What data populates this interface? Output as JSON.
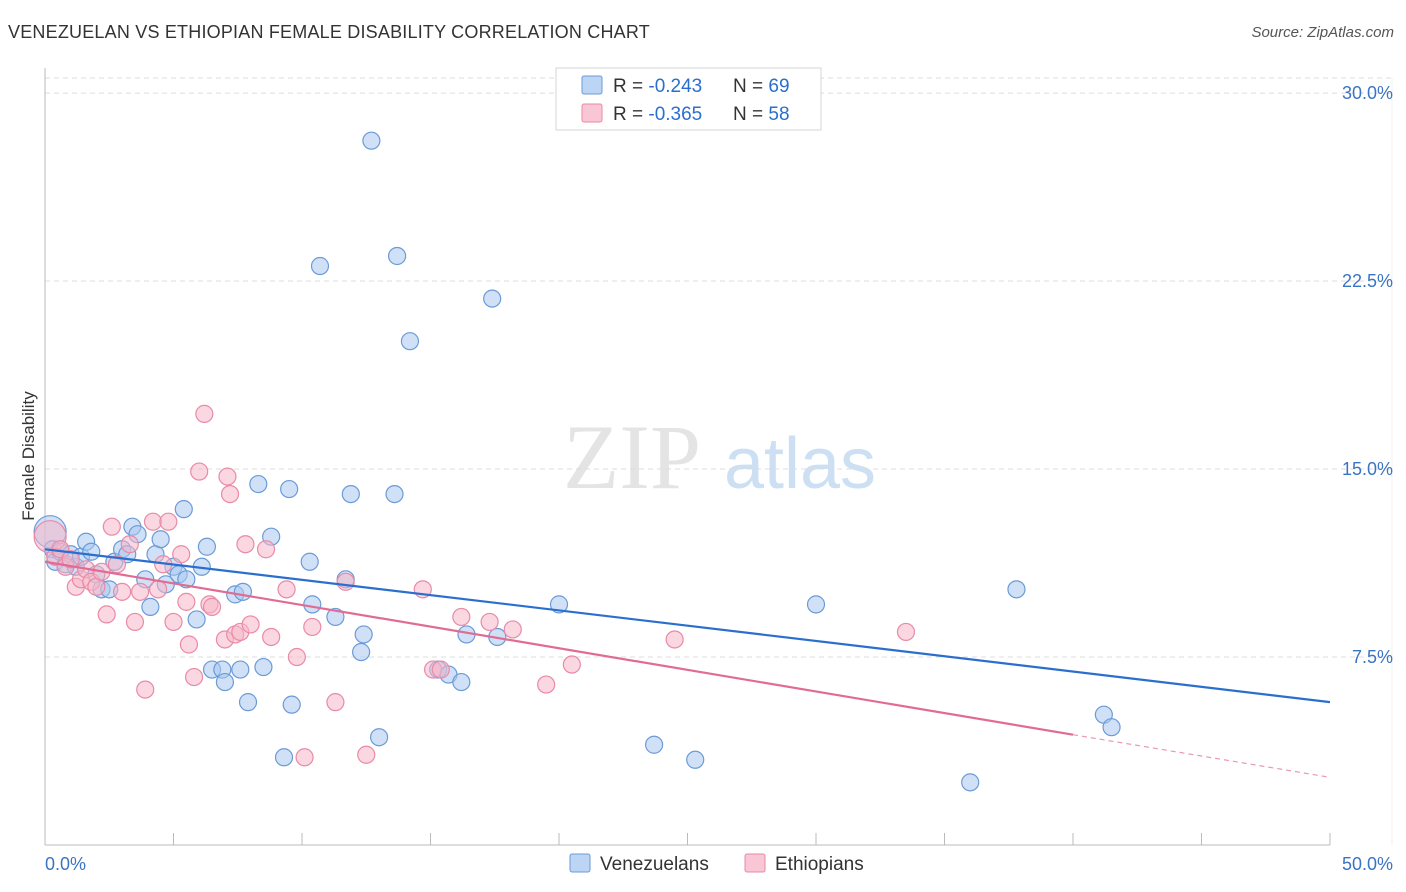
{
  "header": {
    "title": "VENEZUELAN VS ETHIOPIAN FEMALE DISABILITY CORRELATION CHART",
    "source": "Source: ZipAtlas.com"
  },
  "watermark": {
    "zip": "ZIP",
    "atlas": "atlas"
  },
  "colors": {
    "blue_fill": "#a9c8f0",
    "blue_stroke": "#6b9bd6",
    "blue_line": "#2b6fce",
    "pink_fill": "#f5b6c8",
    "pink_stroke": "#e98aa8",
    "pink_line": "#e06c93",
    "tick_label": "#3a74c4",
    "grid": "#dddddd"
  },
  "chart_data": {
    "type": "scatter",
    "title": "VENEZUELAN VS ETHIOPIAN FEMALE DISABILITY CORRELATION CHART",
    "xlabel": "",
    "ylabel": "Female Disability",
    "xlim": [
      0,
      50
    ],
    "ylim": [
      0,
      31
    ],
    "x_tick_labels": [
      "0.0%",
      "50.0%"
    ],
    "y_ticks": [
      7.5,
      15.0,
      22.5,
      30.0
    ],
    "y_tick_labels": [
      "7.5%",
      "15.0%",
      "22.5%",
      "30.0%"
    ],
    "grid": "horizontal dashed",
    "legend_position": "top-center",
    "stats_legend": [
      {
        "r_label": "R = ",
        "r_value": "-0.243",
        "n_label": "N = ",
        "n_value": "69"
      },
      {
        "r_label": "R = ",
        "r_value": "-0.365",
        "n_label": "N = ",
        "n_value": "58"
      }
    ],
    "series": [
      {
        "name": "Venezuelans",
        "trend": {
          "x0": 0,
          "y0": 11.8,
          "x1": 50,
          "y1": 5.7
        },
        "points": [
          [
            0.2,
            12.5
          ],
          [
            0.3,
            11.8
          ],
          [
            0.4,
            11.3
          ],
          [
            0.6,
            11.7
          ],
          [
            0.8,
            11.2
          ],
          [
            1.0,
            11.6
          ],
          [
            1.2,
            11.1
          ],
          [
            1.4,
            11.5
          ],
          [
            1.6,
            12.1
          ],
          [
            1.8,
            11.7
          ],
          [
            2.0,
            10.8
          ],
          [
            2.2,
            10.2
          ],
          [
            2.5,
            10.2
          ],
          [
            2.7,
            11.3
          ],
          [
            3.0,
            11.8
          ],
          [
            3.2,
            11.6
          ],
          [
            3.4,
            12.7
          ],
          [
            3.6,
            12.4
          ],
          [
            3.9,
            10.6
          ],
          [
            4.1,
            9.5
          ],
          [
            4.3,
            11.6
          ],
          [
            4.5,
            12.2
          ],
          [
            4.7,
            10.4
          ],
          [
            5.0,
            11.1
          ],
          [
            5.2,
            10.8
          ],
          [
            5.5,
            10.6
          ],
          [
            5.4,
            13.4
          ],
          [
            5.9,
            9.0
          ],
          [
            6.1,
            11.1
          ],
          [
            6.3,
            11.9
          ],
          [
            6.5,
            7.0
          ],
          [
            6.9,
            7.0
          ],
          [
            7.0,
            6.5
          ],
          [
            7.4,
            10.0
          ],
          [
            7.6,
            7.0
          ],
          [
            7.7,
            10.1
          ],
          [
            7.9,
            5.7
          ],
          [
            8.3,
            14.4
          ],
          [
            8.5,
            7.1
          ],
          [
            8.8,
            12.3
          ],
          [
            9.3,
            3.5
          ],
          [
            9.5,
            14.2
          ],
          [
            9.6,
            5.6
          ],
          [
            10.3,
            11.3
          ],
          [
            10.4,
            9.6
          ],
          [
            10.7,
            23.1
          ],
          [
            11.3,
            9.1
          ],
          [
            11.7,
            10.6
          ],
          [
            11.9,
            14.0
          ],
          [
            12.3,
            7.7
          ],
          [
            12.4,
            8.4
          ],
          [
            12.7,
            28.1
          ],
          [
            13.0,
            4.3
          ],
          [
            13.6,
            14.0
          ],
          [
            13.7,
            23.5
          ],
          [
            14.2,
            20.1
          ],
          [
            15.3,
            7.0
          ],
          [
            15.7,
            6.8
          ],
          [
            16.2,
            6.5
          ],
          [
            16.4,
            8.4
          ],
          [
            17.4,
            21.8
          ],
          [
            17.6,
            8.3
          ],
          [
            20.0,
            9.6
          ],
          [
            23.7,
            4.0
          ],
          [
            25.3,
            3.4
          ],
          [
            30.0,
            9.6
          ],
          [
            36.0,
            2.5
          ],
          [
            37.8,
            10.2
          ],
          [
            41.2,
            5.2
          ],
          [
            41.5,
            4.7
          ]
        ]
      },
      {
        "name": "Ethiopians",
        "trend": {
          "x0": 0,
          "y0": 11.3,
          "x1": 40,
          "y1": 4.4,
          "dash_x1": 50,
          "dash_y1": 2.7
        },
        "points": [
          [
            0.2,
            12.3
          ],
          [
            0.4,
            11.5
          ],
          [
            0.6,
            11.8
          ],
          [
            0.8,
            11.1
          ],
          [
            1.0,
            11.4
          ],
          [
            1.2,
            10.3
          ],
          [
            1.4,
            10.6
          ],
          [
            1.6,
            11.0
          ],
          [
            1.8,
            10.5
          ],
          [
            2.0,
            10.3
          ],
          [
            2.2,
            10.9
          ],
          [
            2.4,
            9.2
          ],
          [
            2.6,
            12.7
          ],
          [
            2.8,
            11.2
          ],
          [
            3.0,
            10.1
          ],
          [
            3.3,
            12.0
          ],
          [
            3.5,
            8.9
          ],
          [
            3.7,
            10.1
          ],
          [
            3.9,
            6.2
          ],
          [
            4.2,
            12.9
          ],
          [
            4.4,
            10.2
          ],
          [
            4.6,
            11.2
          ],
          [
            4.8,
            12.9
          ],
          [
            5.0,
            8.9
          ],
          [
            5.3,
            11.6
          ],
          [
            5.5,
            9.7
          ],
          [
            5.6,
            8.0
          ],
          [
            5.8,
            6.7
          ],
          [
            6.0,
            14.9
          ],
          [
            6.2,
            17.2
          ],
          [
            6.4,
            9.6
          ],
          [
            6.5,
            9.5
          ],
          [
            7.0,
            8.2
          ],
          [
            7.1,
            14.7
          ],
          [
            7.2,
            14.0
          ],
          [
            7.4,
            8.4
          ],
          [
            7.6,
            8.5
          ],
          [
            7.8,
            12.0
          ],
          [
            8.0,
            8.8
          ],
          [
            8.6,
            11.8
          ],
          [
            8.8,
            8.3
          ],
          [
            9.4,
            10.2
          ],
          [
            9.8,
            7.5
          ],
          [
            10.1,
            3.5
          ],
          [
            10.4,
            8.7
          ],
          [
            11.3,
            5.7
          ],
          [
            11.7,
            10.5
          ],
          [
            12.5,
            3.6
          ],
          [
            14.7,
            10.2
          ],
          [
            15.1,
            7.0
          ],
          [
            15.4,
            7.0
          ],
          [
            16.2,
            9.1
          ],
          [
            17.3,
            8.9
          ],
          [
            18.2,
            8.6
          ],
          [
            19.5,
            6.4
          ],
          [
            20.5,
            7.2
          ],
          [
            24.5,
            8.2
          ],
          [
            33.5,
            8.5
          ]
        ]
      }
    ]
  }
}
